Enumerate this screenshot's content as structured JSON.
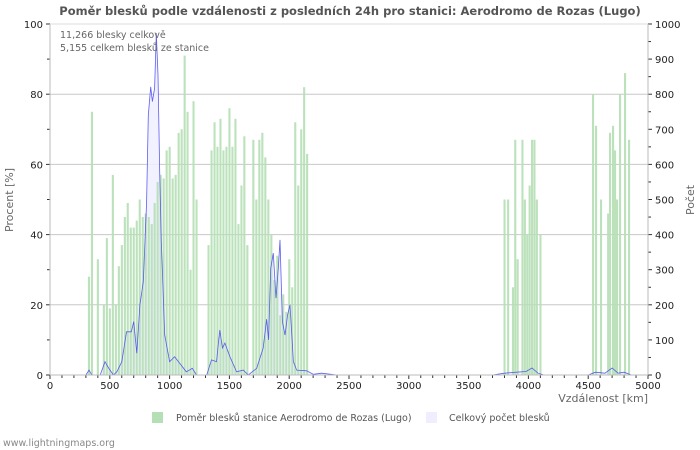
{
  "chart_data": {
    "type": "bar",
    "title": "Poměr blesků podle vzdálenosti z posledních 24h pro stanici: Aerodromo de Rozas (Lugo)",
    "xlabel": "Vzdálenost   [km]",
    "ylabel": "Procent   [%]",
    "ylabel_right": "Počet",
    "xlim": [
      0,
      5000
    ],
    "ylim": [
      0,
      100
    ],
    "ylim_right": [
      0,
      1000
    ],
    "x_ticks": [
      0,
      500,
      1000,
      1500,
      2000,
      2500,
      3000,
      3500,
      4000,
      4500,
      5000
    ],
    "y_ticks": [
      0,
      20,
      40,
      60,
      80,
      100
    ],
    "y_ticks_right": [
      0,
      100,
      200,
      300,
      400,
      500,
      600,
      700,
      800,
      900,
      1000
    ],
    "grid": true,
    "legend_placement": "bottom",
    "annotations": [
      "11,266 blesky celkově",
      "5,155 celkem blesků ze stanice"
    ],
    "series": [
      {
        "name": "Poměr blesků stanice Aerodromo de Rozas (Lugo)",
        "type": "bar",
        "axis": "left",
        "color": "#b5dfb5",
        "points": [
          [
            325,
            28
          ],
          [
            350,
            75
          ],
          [
            400,
            33
          ],
          [
            450,
            20
          ],
          [
            475,
            39
          ],
          [
            500,
            19
          ],
          [
            525,
            57
          ],
          [
            550,
            20
          ],
          [
            575,
            31
          ],
          [
            600,
            37
          ],
          [
            625,
            45
          ],
          [
            650,
            49
          ],
          [
            675,
            42
          ],
          [
            700,
            42
          ],
          [
            725,
            44
          ],
          [
            750,
            50
          ],
          [
            775,
            45
          ],
          [
            800,
            46
          ],
          [
            825,
            45
          ],
          [
            850,
            43
          ],
          [
            875,
            49
          ],
          [
            900,
            55
          ],
          [
            925,
            57
          ],
          [
            950,
            56
          ],
          [
            975,
            64
          ],
          [
            1000,
            65
          ],
          [
            1025,
            56
          ],
          [
            1050,
            57
          ],
          [
            1075,
            69
          ],
          [
            1100,
            70
          ],
          [
            1125,
            91
          ],
          [
            1150,
            75
          ],
          [
            1175,
            30
          ],
          [
            1200,
            78
          ],
          [
            1225,
            50
          ],
          [
            1325,
            37
          ],
          [
            1350,
            64
          ],
          [
            1375,
            72
          ],
          [
            1400,
            65
          ],
          [
            1425,
            73
          ],
          [
            1450,
            64
          ],
          [
            1475,
            65
          ],
          [
            1500,
            76
          ],
          [
            1525,
            65
          ],
          [
            1550,
            73
          ],
          [
            1575,
            43
          ],
          [
            1600,
            54
          ],
          [
            1625,
            68
          ],
          [
            1650,
            37
          ],
          [
            1700,
            67
          ],
          [
            1725,
            50
          ],
          [
            1750,
            67
          ],
          [
            1775,
            69
          ],
          [
            1800,
            62
          ],
          [
            1825,
            50
          ],
          [
            1850,
            40
          ],
          [
            1875,
            27
          ],
          [
            1900,
            34
          ],
          [
            1925,
            17
          ],
          [
            1950,
            23
          ],
          [
            1975,
            18
          ],
          [
            2000,
            33
          ],
          [
            2025,
            25
          ],
          [
            2050,
            72
          ],
          [
            2075,
            54
          ],
          [
            2100,
            70
          ],
          [
            2125,
            82
          ],
          [
            2150,
            63
          ],
          [
            3800,
            50
          ],
          [
            3830,
            50
          ],
          [
            3870,
            25
          ],
          [
            3890,
            67
          ],
          [
            3910,
            33
          ],
          [
            3950,
            67
          ],
          [
            3970,
            50
          ],
          [
            3990,
            40
          ],
          [
            4010,
            54
          ],
          [
            4030,
            67
          ],
          [
            4050,
            67
          ],
          [
            4070,
            50
          ],
          [
            4100,
            40
          ],
          [
            4540,
            80
          ],
          [
            4565,
            71
          ],
          [
            4607,
            50
          ],
          [
            4666,
            46
          ],
          [
            4682,
            69
          ],
          [
            4707,
            71
          ],
          [
            4724,
            64
          ],
          [
            4741,
            50
          ],
          [
            4766,
            80
          ],
          [
            4808,
            86
          ],
          [
            4841,
            67
          ]
        ]
      },
      {
        "name": "Celkový počet blesků",
        "type": "area",
        "axis": "right",
        "color": "#4444ee",
        "fill": "#eeeeff",
        "points": [
          [
            300,
            0
          ],
          [
            326,
            14
          ],
          [
            350,
            0
          ],
          [
            420,
            0
          ],
          [
            460,
            38
          ],
          [
            490,
            20
          ],
          [
            530,
            0
          ],
          [
            560,
            10
          ],
          [
            600,
            38
          ],
          [
            640,
            123
          ],
          [
            680,
            123
          ],
          [
            700,
            152
          ],
          [
            726,
            62
          ],
          [
            752,
            200
          ],
          [
            780,
            266
          ],
          [
            808,
            494
          ],
          [
            822,
            740
          ],
          [
            842,
            821
          ],
          [
            856,
            779
          ],
          [
            875,
            817
          ],
          [
            889,
            974
          ],
          [
            903,
            855
          ],
          [
            917,
            579
          ],
          [
            931,
            380
          ],
          [
            959,
            114
          ],
          [
            1000,
            38
          ],
          [
            1042,
            52
          ],
          [
            1084,
            34
          ],
          [
            1140,
            9
          ],
          [
            1190,
            19
          ],
          [
            1225,
            0
          ],
          [
            1310,
            0
          ],
          [
            1350,
            43
          ],
          [
            1392,
            38
          ],
          [
            1420,
            128
          ],
          [
            1442,
            77
          ],
          [
            1462,
            91
          ],
          [
            1504,
            52
          ],
          [
            1560,
            9
          ],
          [
            1616,
            14
          ],
          [
            1658,
            0
          ],
          [
            1728,
            19
          ],
          [
            1783,
            77
          ],
          [
            1811,
            159
          ],
          [
            1828,
            100
          ],
          [
            1845,
            304
          ],
          [
            1867,
            347
          ],
          [
            1890,
            219
          ],
          [
            1909,
            304
          ],
          [
            1923,
            385
          ],
          [
            1943,
            152
          ],
          [
            1965,
            114
          ],
          [
            1987,
            171
          ],
          [
            2007,
            200
          ],
          [
            2035,
            38
          ],
          [
            2063,
            14
          ],
          [
            2146,
            12
          ],
          [
            2202,
            2
          ],
          [
            2271,
            5
          ],
          [
            2400,
            0
          ],
          [
            3700,
            0
          ],
          [
            3800,
            5
          ],
          [
            3900,
            8
          ],
          [
            3980,
            10
          ],
          [
            4030,
            20
          ],
          [
            4080,
            5
          ],
          [
            4130,
            0
          ],
          [
            4500,
            0
          ],
          [
            4560,
            8
          ],
          [
            4640,
            5
          ],
          [
            4700,
            20
          ],
          [
            4750,
            5
          ],
          [
            4800,
            8
          ],
          [
            4860,
            0
          ],
          [
            5000,
            0
          ]
        ]
      }
    ]
  },
  "footer": "www.lightningmaps.org"
}
